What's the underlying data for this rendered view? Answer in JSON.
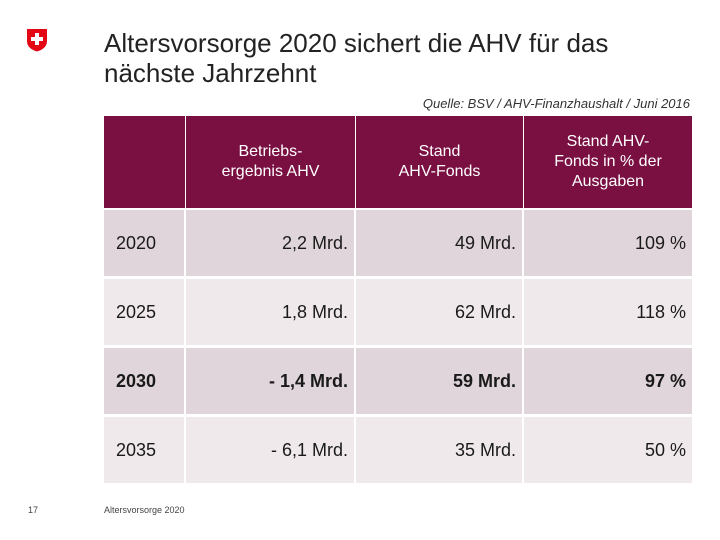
{
  "title": "Altersvorsorge 2020 sichert die AHV für das nächste Jahrzehnt",
  "source": "Quelle: BSV / AHV-Finanzhaushalt / Juni 2016",
  "colors": {
    "header_bg": "#7a1042",
    "row_dark": "#e0d5da",
    "row_light": "#efe9ec",
    "logo_red": "#e30613"
  },
  "logo_icon": "swiss-cross-icon",
  "table": {
    "headers": [
      "",
      "Betriebs-\nergebnis AHV",
      "Stand\nAHV-Fonds",
      "Stand AHV-\nFonds in % der\nAusgaben"
    ],
    "rows": [
      [
        "2020",
        "2,2 Mrd.",
        "49 Mrd.",
        "109 %"
      ],
      [
        "2025",
        "1,8 Mrd.",
        "62 Mrd.",
        "118 %"
      ],
      [
        "2030",
        "- 1,4 Mrd.",
        "59 Mrd.",
        "97 %"
      ],
      [
        "2035",
        "- 6,1 Mrd.",
        "35 Mrd.",
        "50 %"
      ]
    ]
  },
  "footer": {
    "page_number": "17",
    "label": "Altersvorsorge 2020"
  }
}
